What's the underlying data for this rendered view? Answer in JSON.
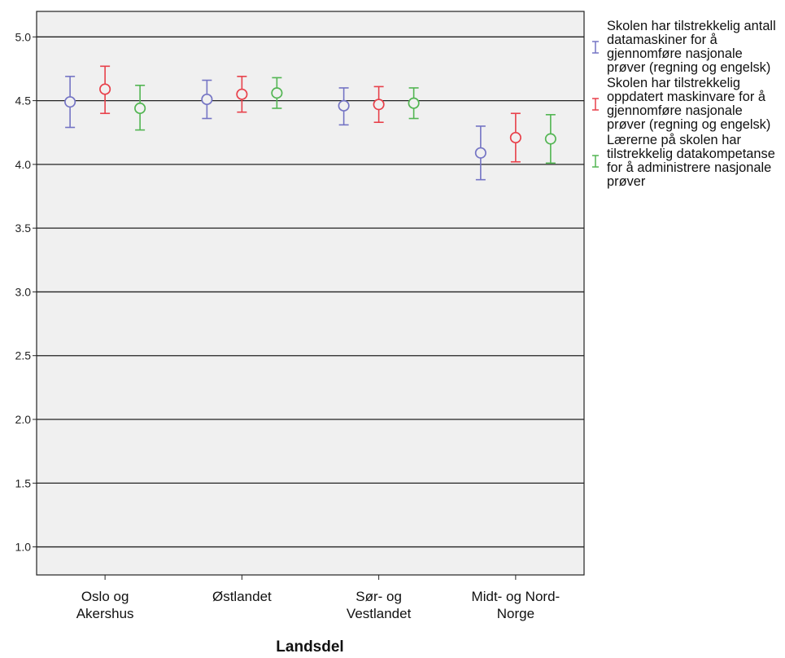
{
  "chart_data": {
    "type": "errorbar",
    "xlabel": "Landsdel",
    "ylabel": "",
    "ylim": [
      0.78,
      5.2
    ],
    "yticks": [
      "1.0",
      "1.5",
      "2.0",
      "2.5",
      "3.0",
      "3.5",
      "4.0",
      "4.5",
      "5.0"
    ],
    "grid": true,
    "legend_position": "right",
    "plot_background": "#f0f0f0",
    "categories": [
      {
        "line1": "Oslo og",
        "line2": "Akershus"
      },
      {
        "line1": "Østlandet",
        "line2": ""
      },
      {
        "line1": "Sør- og",
        "line2": "Vestlandet"
      },
      {
        "line1": "Midt- og Nord-",
        "line2": "Norge"
      }
    ],
    "series": [
      {
        "name": "Skolen har tilstrekkelig antall datamaskiner for å gjennomføre nasjonale prøver (regning og engelsk)",
        "color": "#7474c4",
        "mean": [
          4.49,
          4.51,
          4.46,
          4.09
        ],
        "low": [
          4.29,
          4.36,
          4.31,
          3.88
        ],
        "high": [
          4.69,
          4.66,
          4.6,
          4.3
        ]
      },
      {
        "name": "Skolen har tilstrekkelig oppdatert maskinvare for å gjennomføre nasjonale prøver (regning og engelsk)",
        "color": "#e8404a",
        "mean": [
          4.59,
          4.55,
          4.47,
          4.21
        ],
        "low": [
          4.4,
          4.41,
          4.33,
          4.02
        ],
        "high": [
          4.77,
          4.69,
          4.61,
          4.4
        ]
      },
      {
        "name": "Lærerne på skolen har tilstrekkelig datakompetanse for å administrere nasjonale prøver",
        "color": "#52b552",
        "mean": [
          4.44,
          4.56,
          4.48,
          4.2
        ],
        "low": [
          4.27,
          4.44,
          4.36,
          4.01
        ],
        "high": [
          4.62,
          4.68,
          4.6,
          4.39
        ]
      }
    ]
  }
}
